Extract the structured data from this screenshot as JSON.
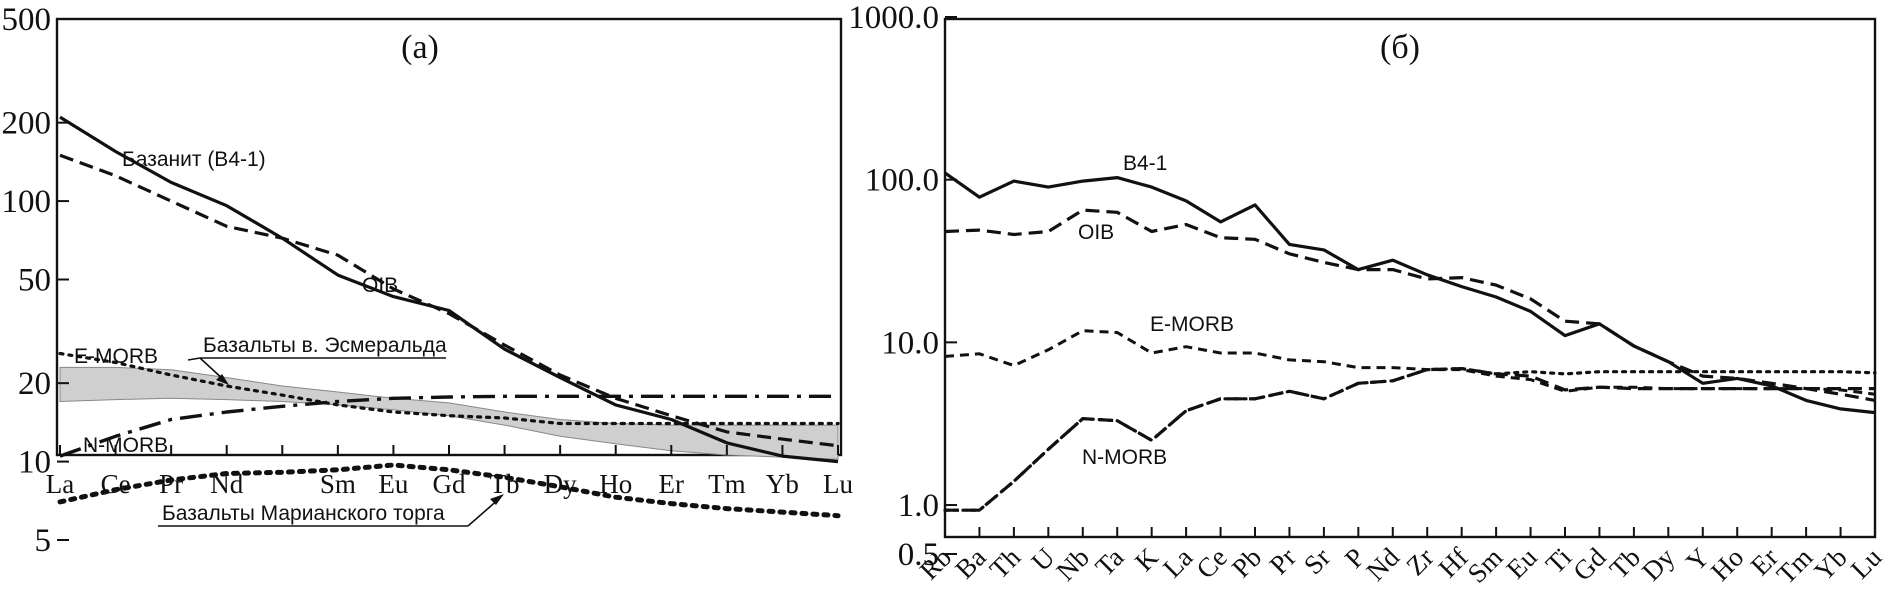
{
  "chart_data": [
    {
      "type": "line",
      "panel": "a",
      "title": "(а)",
      "yscale": "log",
      "ylim": [
        5,
        500
      ],
      "yticks": [
        "500",
        "200",
        "100",
        "50",
        "20",
        "10",
        "5"
      ],
      "ytick_values": [
        500,
        200,
        100,
        50,
        20,
        10,
        5
      ],
      "categories": [
        "La",
        "Ce",
        "Pr",
        "Nd",
        "",
        "Sm",
        "Eu",
        "Gd",
        "Tb",
        "Dy",
        "Ho",
        "Er",
        "Tm",
        "Yb",
        "Lu"
      ],
      "series": [
        {
          "name": "Базанит (В4-1)",
          "style": "solid",
          "values": [
            210,
            155,
            118,
            96,
            72,
            52,
            43,
            38,
            27,
            21,
            16.5,
            14.5,
            11.8,
            10.5,
            10
          ]
        },
        {
          "name": "OIB",
          "style": "dashed",
          "values": [
            150,
            125,
            100,
            80,
            72,
            62,
            46,
            37,
            28,
            21.5,
            17.5,
            15,
            13,
            12.2,
            11.5
          ]
        },
        {
          "name": "E-MORB",
          "style": "dotted",
          "values": [
            26,
            24,
            21.5,
            19.5,
            18,
            16.5,
            15.5,
            15,
            14.7,
            14,
            14,
            14,
            14,
            14,
            14
          ]
        },
        {
          "name": "N-MORB",
          "style": "dashdot",
          "values": [
            10.5,
            12.5,
            14.5,
            15.5,
            16.3,
            17,
            17.5,
            17.7,
            17.8,
            17.8,
            17.8,
            17.8,
            17.8,
            17.8,
            17.8
          ]
        },
        {
          "name": "Базальты Марианского торга",
          "style": "dotted-heavy",
          "values": [
            7,
            7.8,
            8.5,
            9,
            9.1,
            9.3,
            9.7,
            9.3,
            8.7,
            8,
            7.3,
            6.9,
            6.6,
            6.4,
            6.2
          ]
        }
      ],
      "band": {
        "name": "Базальты в. Эсмеральда",
        "upper": [
          23,
          23,
          22.5,
          21,
          19.5,
          18.5,
          17.5,
          16.8,
          15.5,
          14.5,
          14,
          13.8,
          13.8,
          13.8,
          13.8
        ],
        "lower": [
          17,
          17.3,
          17.5,
          17.3,
          17,
          16.5,
          15.8,
          15,
          13.8,
          12.5,
          11.7,
          11,
          10.6,
          10.4,
          10.2
        ]
      },
      "labels": {
        "basanite": "Базанит (В4-1)",
        "oib": "OIB",
        "emorb": "E-MORB",
        "nmorb": "N-MORB",
        "esmeralda": "Базальты в. Эсмеральда",
        "mariana": "Базальты Марианского торга"
      }
    },
    {
      "type": "line",
      "panel": "б",
      "title": "(б)",
      "yscale": "log",
      "ylim": [
        0.5,
        1000
      ],
      "yticks": [
        "1000.0",
        "100.0",
        "10.0",
        "1.0",
        "0.5"
      ],
      "ytick_values": [
        1000,
        100,
        10,
        1,
        0.5
      ],
      "categories": [
        "Rb",
        "Ba",
        "Th",
        "U",
        "Nb",
        "Ta",
        "K",
        "La",
        "Ce",
        "Pb",
        "Pr",
        "Sr",
        "P",
        "Nd",
        "Zr",
        "Hf",
        "Sm",
        "Eu",
        "Ti",
        "Gd",
        "Tb",
        "Dy",
        "Y",
        "Ho",
        "Er",
        "Tm",
        "Yb",
        "Lu"
      ],
      "series": [
        {
          "name": "B4-1",
          "style": "solid",
          "values": [
            110,
            78,
            98,
            90,
            98,
            103,
            90,
            74,
            55,
            70,
            40,
            37,
            28,
            32,
            26,
            22,
            19,
            15.5,
            11,
            13,
            9.5,
            7.6,
            5.6,
            6,
            5.4,
            4.4,
            3.9,
            3.7
          ]
        },
        {
          "name": "OIB",
          "style": "dashed",
          "values": [
            48,
            49,
            46,
            48,
            65,
            63,
            48,
            53,
            44,
            43,
            35,
            31,
            28,
            28,
            24.5,
            25,
            22.5,
            18.5,
            13.5,
            13,
            9.5,
            7.6,
            6.2,
            6,
            5.6,
            5.2,
            4.8,
            4.4
          ]
        },
        {
          "name": "E-MORB",
          "style": "dashed-fine",
          "values": [
            8.2,
            8.5,
            7.2,
            9,
            11.8,
            11.5,
            8.6,
            9.4,
            8.6,
            8.6,
            7.8,
            7.6,
            7,
            7,
            6.8,
            6.8,
            6.2,
            5.9,
            5,
            5.3,
            5.3,
            5.2,
            5.2,
            5.2,
            5.2,
            5.2,
            5.1,
            4.8
          ]
        },
        {
          "name": "N-MORB",
          "style": "dashed",
          "values": [
            0.93,
            0.93,
            1.4,
            2.2,
            3.4,
            3.3,
            2.5,
            3.8,
            4.5,
            4.5,
            5,
            4.5,
            5.6,
            5.8,
            6.8,
            6.9,
            6.4,
            6.2,
            5.1,
            5.3,
            5.2,
            5.2,
            5.2,
            5.2,
            5.2,
            5.2,
            5.2,
            5.2
          ]
        },
        {
          "name": "",
          "style": "dotted",
          "values": [
            0.93,
            0.93,
            1.4,
            2.2,
            3.4,
            3.3,
            2.5,
            3.8,
            4.5,
            4.5,
            5,
            4.5,
            5.6,
            5.8,
            6.8,
            6.9,
            6.4,
            6.6,
            6.4,
            6.6,
            6.6,
            6.6,
            6.6,
            6.6,
            6.6,
            6.6,
            6.6,
            6.5
          ]
        }
      ],
      "labels": {
        "b41": "B4-1",
        "oib": "OIB",
        "emorb": "E-MORB",
        "nmorb": "N-MORB"
      }
    }
  ]
}
